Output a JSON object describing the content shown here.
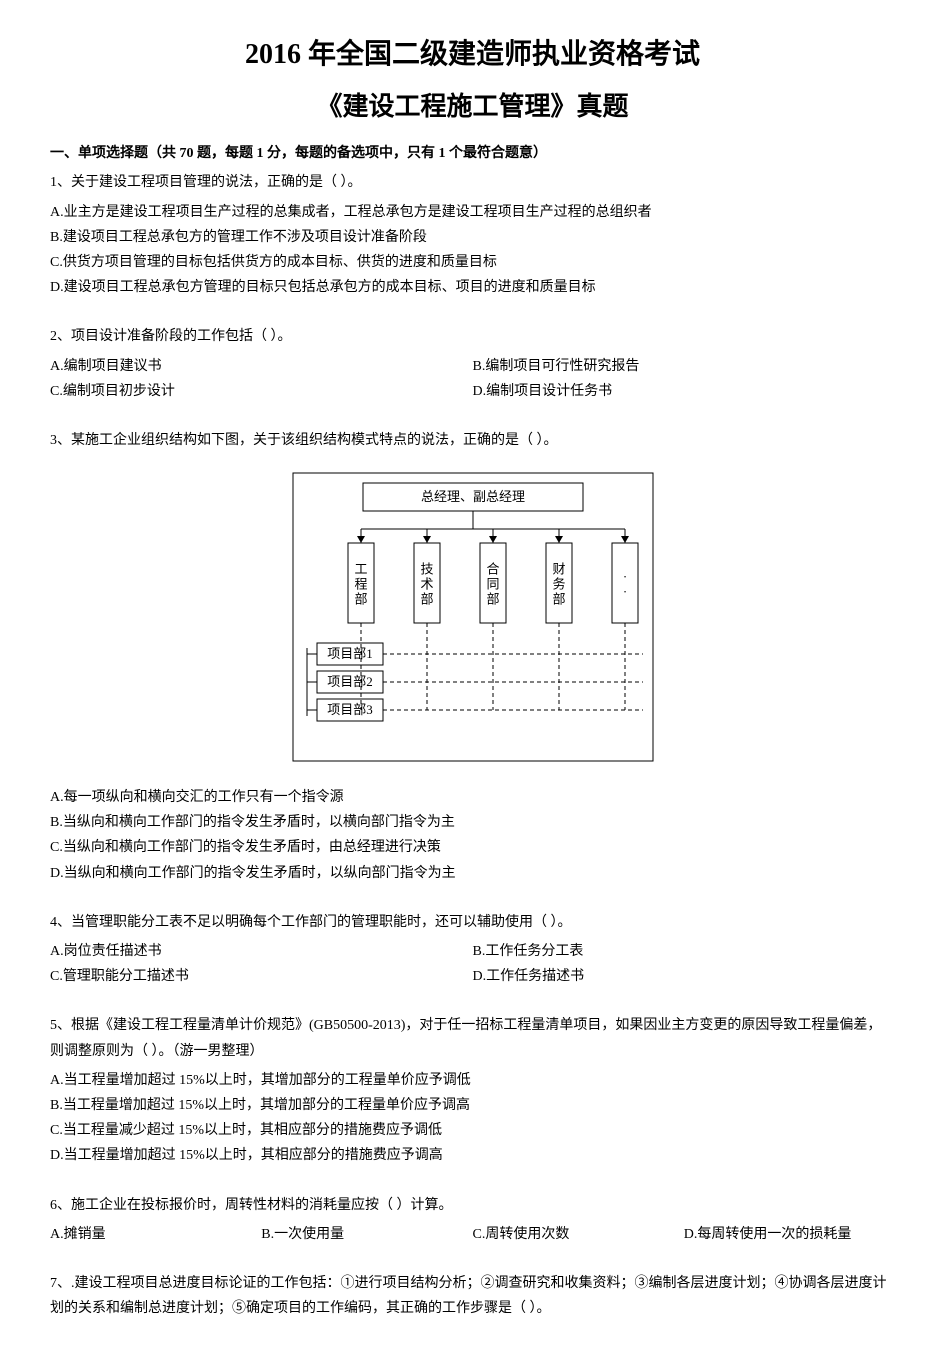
{
  "title_main": "2016 年全国二级建造师执业资格考试",
  "title_sub": "《建设工程施工管理》真题",
  "section_header": "一、单项选择题（共 70 题，每题 1 分，每题的备选项中，只有 1 个最符合题意）",
  "questions": [
    {
      "stem": "1、关于建设工程项目管理的说法，正确的是（ ）。",
      "layout": "single",
      "options": [
        "A.业主方是建设工程项目生产过程的总集成者，工程总承包方是建设工程项目生产过程的总组织者",
        "B.建设项目工程总承包方的管理工作不涉及项目设计准备阶段",
        "C.供货方项目管理的目标包括供货方的成本目标、供货的进度和质量目标",
        "D.建设项目工程总承包方管理的目标只包括总承包方的成本目标、项目的进度和质量目标"
      ]
    },
    {
      "stem": "2、项目设计准备阶段的工作包括（ ）。",
      "layout": "two-col",
      "options": [
        "A.编制项目建议书",
        "B.编制项目可行性研究报告",
        "C.编制项目初步设计",
        "D.编制项目设计任务书"
      ]
    },
    {
      "stem": "3、某施工企业组织结构如下图，关于该组织结构模式特点的说法，正确的是（ ）。",
      "layout": "single",
      "has_diagram": true,
      "options": [
        "A.每一项纵向和横向交汇的工作只有一个指令源",
        "B.当纵向和横向工作部门的指令发生矛盾时，以横向部门指令为主",
        "C.当纵向和横向工作部门的指令发生矛盾时，由总经理进行决策",
        "D.当纵向和横向工作部门的指令发生矛盾时，以纵向部门指令为主"
      ]
    },
    {
      "stem": "4、当管理职能分工表不足以明确每个工作部门的管理职能时，还可以辅助使用（ ）。",
      "layout": "two-col",
      "options": [
        "A.岗位责任描述书",
        "B.工作任务分工表",
        "C.管理职能分工描述书",
        "D.工作任务描述书"
      ]
    },
    {
      "stem": "5、根据《建设工程工程量清单计价规范》(GB50500-2013)，对于任一招标工程量清单项目，如果因业主方变更的原因导致工程量偏差，则调整原则为（ ）。（游一男整理）",
      "layout": "single",
      "options": [
        "A.当工程量增加超过 15%以上时，其增加部分的工程量单价应予调低",
        "B.当工程量增加超过 15%以上时，其增加部分的工程量单价应予调高",
        "C.当工程量减少超过 15%以上时，其相应部分的措施费应予调低",
        "D.当工程量增加超过 15%以上时，其相应部分的措施费应予调高"
      ]
    },
    {
      "stem": "6、施工企业在投标报价时，周转性材料的消耗量应按（ ）计算。",
      "layout": "four-col",
      "options": [
        "A.摊销量",
        "B.一次使用量",
        "C.周转使用次数",
        "D.每周转使用一次的损耗量"
      ]
    },
    {
      "stem": "7、.建设工程项目总进度目标论证的工作包括：①进行项目结构分析；②调查研究和收集资料；③编制各层进度计划；④协调各层进度计划的关系和编制总进度计划；⑤确定项目的工作编码，其正确的工作步骤是（ ）。",
      "layout": "none",
      "options": []
    }
  ],
  "diagram": {
    "type": "org-matrix",
    "top_box": "总经理、副总经理",
    "dept_boxes": [
      "工程部",
      "技术部",
      "合同部",
      "财务部",
      "··"
    ],
    "project_rows": [
      "项目部1",
      "项目部2",
      "项目部3"
    ],
    "border_color": "#000000",
    "background_color": "#ffffff",
    "font_size": 13,
    "outer_width": 360,
    "outer_height": 280,
    "top_box_w": 220,
    "top_box_h": 28,
    "dept_box_w": 26,
    "dept_box_h": 80,
    "proj_box_w": 66,
    "proj_box_h": 22
  }
}
